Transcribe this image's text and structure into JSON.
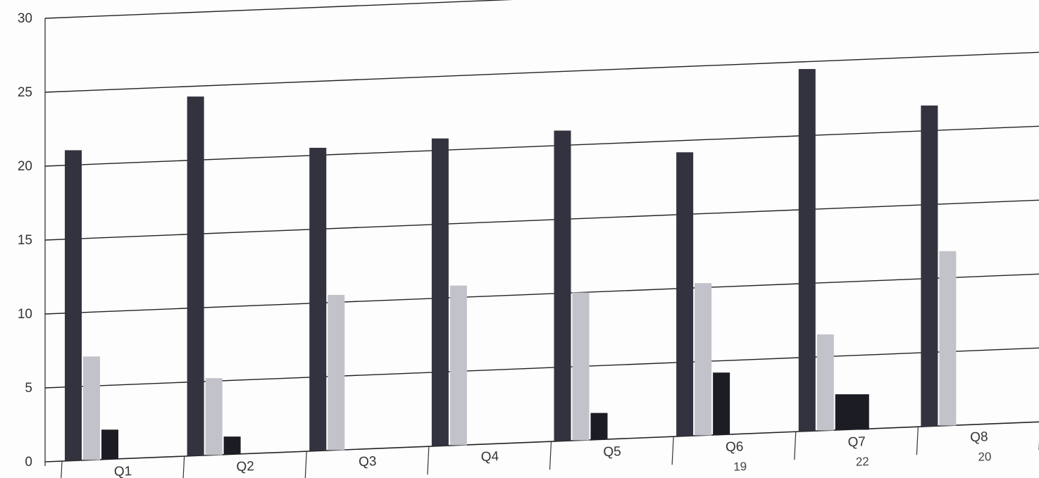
{
  "chart_data": {
    "type": "bar",
    "title": "",
    "xlabel": "",
    "ylabel": "",
    "ylim": [
      0,
      30
    ],
    "yticks": [
      0,
      5,
      10,
      15,
      20,
      25,
      30
    ],
    "grid": true,
    "legend": "none",
    "categories": [
      "Q1",
      "Q2",
      "Q3",
      "Q4",
      "Q5",
      "Q6",
      "Q7",
      "Q8"
    ],
    "series": [
      {
        "color": "#33333f",
        "values": [
          21,
          24.3,
          20.5,
          20.8,
          21,
          19.2,
          24.5,
          21.7
        ]
      },
      {
        "color": "#c2c2ca",
        "values": [
          7,
          5.2,
          10.5,
          10.8,
          10,
          10.3,
          6.5,
          11.8
        ]
      },
      {
        "color": "#1c1c24",
        "values": [
          2,
          1.2,
          0,
          0,
          1.8,
          4.2,
          2.4,
          0
        ]
      }
    ],
    "table_row_partial": [
      "",
      "",
      "",
      "",
      "",
      "19",
      "22",
      "20"
    ]
  }
}
